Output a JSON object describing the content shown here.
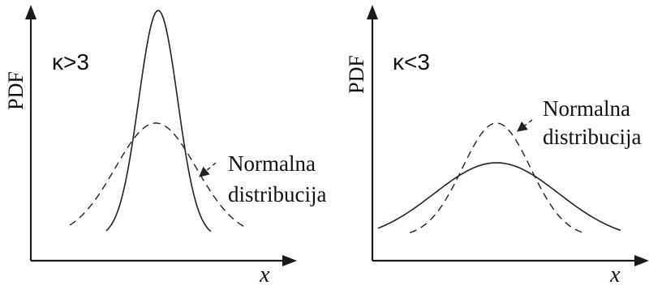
{
  "panels": [
    {
      "ylabel": "PDF",
      "xlabel": "x",
      "kappa_label": "κ>3",
      "annotation": {
        "line1": "Normalna",
        "line2": "distribucija"
      }
    },
    {
      "ylabel": "PDF",
      "xlabel": "x",
      "kappa_label": "κ<3",
      "annotation": {
        "line1": "Normalna",
        "line2": "distribucija"
      }
    }
  ]
}
